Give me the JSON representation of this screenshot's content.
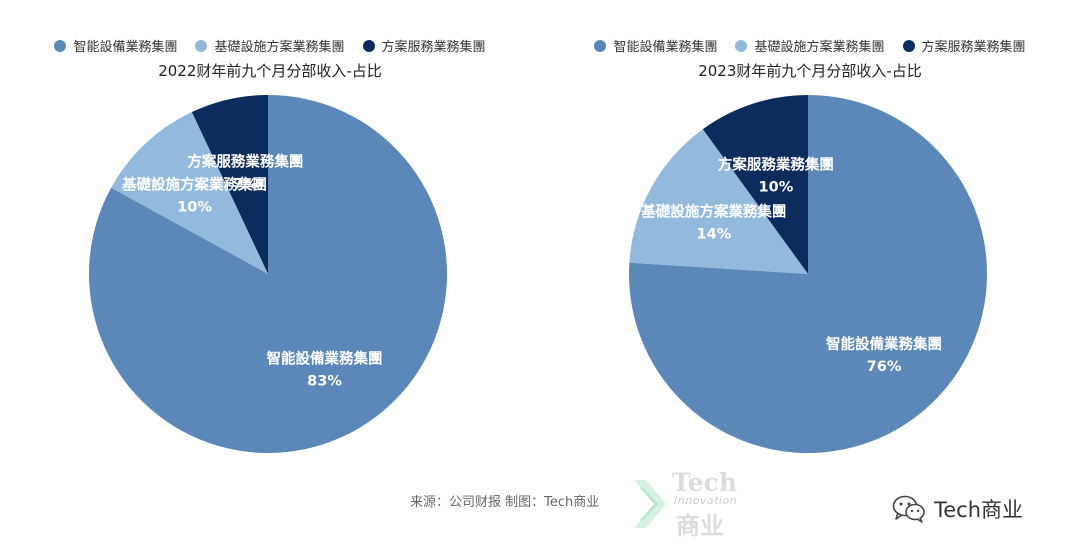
{
  "chart_data": [
    {
      "type": "pie",
      "title": "2022财年前九个月分部收入-占比",
      "legend": [
        "智能設備業務集團",
        "基礎設施方案業務集團",
        "方案服務業務集團"
      ],
      "legend_position": "top",
      "slices": [
        {
          "name": "智能設備業務集團",
          "value": 83,
          "label": "83%",
          "color": "#5b87b9"
        },
        {
          "name": "基礎設施方案業務集團",
          "value": 10,
          "label": "10%",
          "color": "#93b9dd"
        },
        {
          "name": "方案服務業務集團",
          "value": 7,
          "label": "7%",
          "color": "#0d2c5e"
        }
      ]
    },
    {
      "type": "pie",
      "title": "2023财年前九个月分部收入-占比",
      "legend": [
        "智能設備業務集團",
        "基礎設施方案業務集團",
        "方案服務業務集團"
      ],
      "legend_position": "top",
      "slices": [
        {
          "name": "智能設備業務集團",
          "value": 76,
          "label": "76%",
          "color": "#5b87b9"
        },
        {
          "name": "基礎設施方案業務集團",
          "value": 14,
          "label": "14%",
          "color": "#93b9dd"
        },
        {
          "name": "方案服務業務集團",
          "value": 10,
          "label": "10%",
          "color": "#0d2c5e"
        }
      ]
    }
  ],
  "footer": {
    "source": "来源：公司财报 制图：Tech商业"
  },
  "watermark": {
    "tech": "Tech",
    "innovation": "Innovation",
    "cn": "商业"
  },
  "brand": {
    "name": "Tech商业",
    "icon": "wechat-icon"
  }
}
